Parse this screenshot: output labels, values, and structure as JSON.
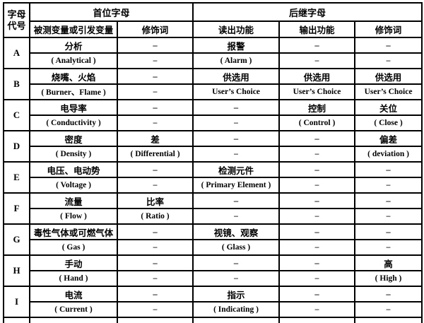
{
  "colors": {
    "border": "#000000",
    "background": "#ffffff",
    "text": "#000000"
  },
  "table": {
    "header": {
      "letter_code_line1": "字母",
      "letter_code_line2": "代号",
      "first_letter": "首位字母",
      "succeeding_letter": "后继字母",
      "sub": [
        "被测变量或引发变量",
        "修饰词",
        "读出功能",
        "输出功能",
        "修饰词"
      ]
    },
    "groups": [
      {
        "letter": "A",
        "cn": [
          "分析",
          "–",
          "报警",
          "–",
          "–"
        ],
        "en": [
          "( Analytical )",
          "–",
          "( Alarm )",
          "–",
          "–"
        ]
      },
      {
        "letter": "B",
        "cn": [
          "烧嘴、火焰",
          "–",
          "供选用",
          "供选用",
          "供选用"
        ],
        "en": [
          "( Burner、Flame )",
          "–",
          "User’s Choice",
          "User’s Choice",
          "User’s Choice"
        ]
      },
      {
        "letter": "C",
        "cn": [
          "电导率",
          "–",
          "–",
          "控制",
          "关位"
        ],
        "en": [
          "( Conductivity )",
          "–",
          "–",
          "( Control )",
          "( Close )"
        ]
      },
      {
        "letter": "D",
        "cn": [
          "密度",
          "差",
          "–",
          "–",
          "偏差"
        ],
        "en": [
          "( Density )",
          "( Differential )",
          "–",
          "–",
          "( deviation )"
        ]
      },
      {
        "letter": "E",
        "cn": [
          "电压、电动势",
          "–",
          "检测元件",
          "–",
          "–"
        ],
        "en": [
          "( Voltage )",
          "–",
          "( Primary Element )",
          "–",
          "–"
        ]
      },
      {
        "letter": "F",
        "cn": [
          "流量",
          "比率",
          "–",
          "–",
          "–"
        ],
        "en": [
          "( Flow )",
          "( Ratio )",
          "–",
          "–",
          "–"
        ]
      },
      {
        "letter": "G",
        "cn": [
          "毒性气体或可燃气体",
          "–",
          "视镜、观察",
          "–",
          "–"
        ],
        "en": [
          "( Gas )",
          "–",
          "( Glass )",
          "–",
          "–"
        ]
      },
      {
        "letter": "H",
        "cn": [
          "手动",
          "–",
          "–",
          "–",
          "高"
        ],
        "en": [
          "( Hand )",
          "–",
          "–",
          "–",
          "( High )"
        ]
      },
      {
        "letter": "I",
        "cn": [
          "电流",
          "–",
          "指示",
          "–",
          "–"
        ],
        "en": [
          "( Current )",
          "–",
          "( Indicating )",
          "–",
          "–"
        ]
      }
    ]
  }
}
